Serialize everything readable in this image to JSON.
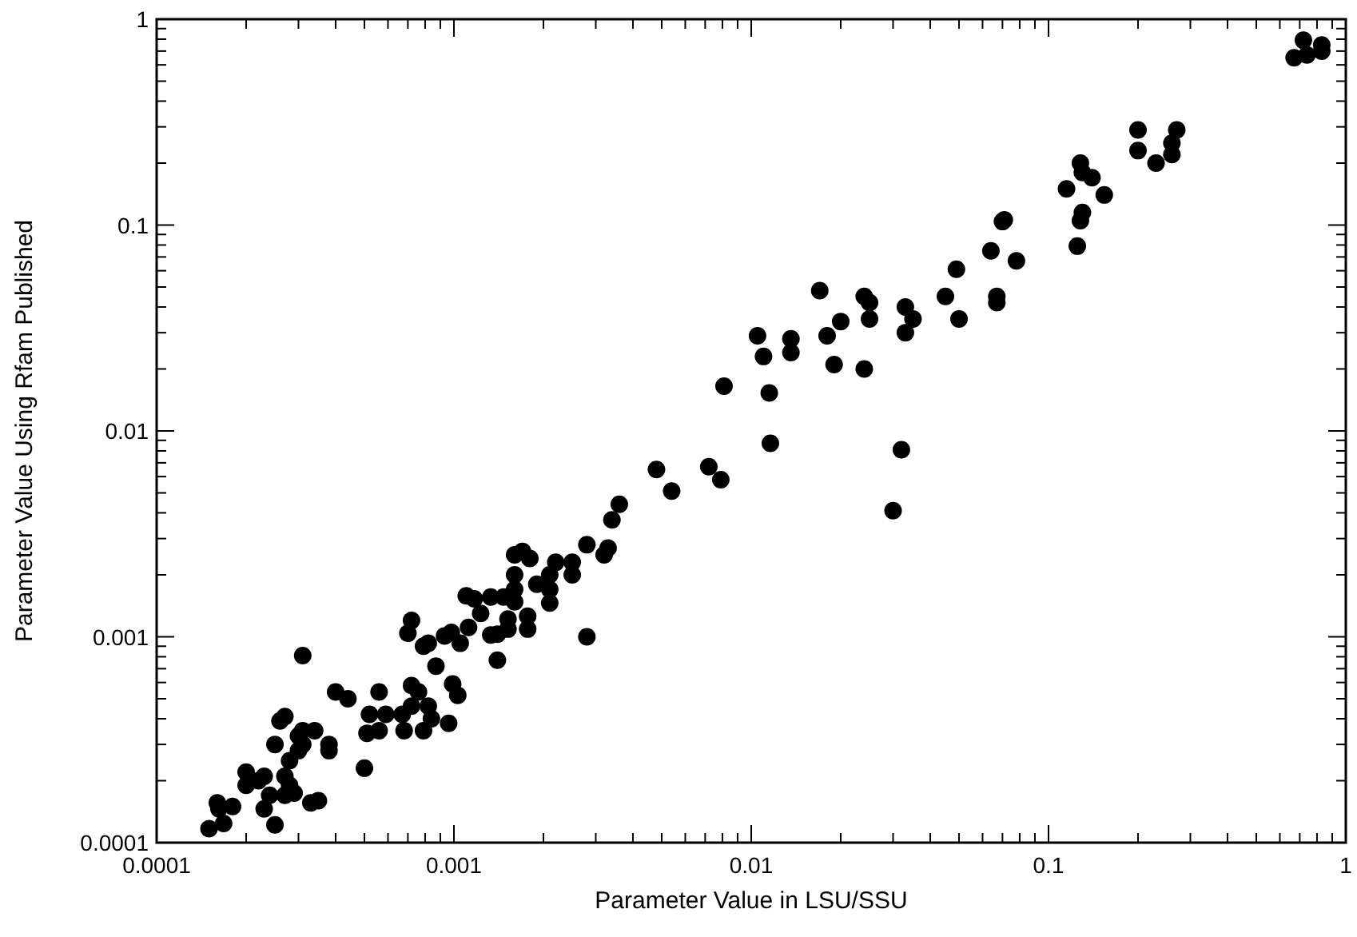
{
  "chart_data": {
    "type": "scatter",
    "xlabel": "Parameter Value in LSU/SSU",
    "ylabel": "Parameter Value Using Rfam Published",
    "log": "xy",
    "marker": "circle",
    "grid": false,
    "xlim": [
      0.0001,
      1
    ],
    "ylim": [
      0.0001,
      1
    ],
    "xticks": [
      0.0001,
      {
        "value": 0.0002,
        "label": null
      },
      {
        "value": 0.0003,
        "label": null
      },
      {
        "value": 0.0004,
        "label": null
      },
      {
        "value": 0.0005,
        "label": null
      },
      {
        "value": 0.0006,
        "label": null
      },
      {
        "value": 0.0007,
        "label": null
      },
      {
        "value": 0.0008,
        "label": null
      },
      {
        "value": 0.0009,
        "label": null
      },
      0.001,
      {
        "value": 0.002,
        "label": null
      },
      {
        "value": 0.003,
        "label": null
      },
      {
        "value": 0.004,
        "label": null
      },
      {
        "value": 0.005,
        "label": null
      },
      {
        "value": 0.006,
        "label": null
      },
      {
        "value": 0.007,
        "label": null
      },
      {
        "value": 0.008,
        "label": null
      },
      {
        "value": 0.009,
        "label": null
      },
      0.01,
      {
        "value": 0.02,
        "label": null
      },
      {
        "value": 0.03,
        "label": null
      },
      {
        "value": 0.04,
        "label": null
      },
      {
        "value": 0.05,
        "label": null
      },
      {
        "value": 0.06,
        "label": null
      },
      {
        "value": 0.07,
        "label": null
      },
      {
        "value": 0.08,
        "label": null
      },
      {
        "value": 0.09,
        "label": null
      },
      0.1,
      {
        "value": 0.2,
        "label": null
      },
      {
        "value": 0.3,
        "label": null
      },
      {
        "value": 0.4,
        "label": null
      },
      {
        "value": 0.5,
        "label": null
      },
      {
        "value": 0.6,
        "label": null
      },
      {
        "value": 0.7,
        "label": null
      },
      {
        "value": 0.8,
        "label": null
      },
      {
        "value": 0.9,
        "label": null
      },
      1
    ],
    "yticks": [
      0.0001,
      {
        "value": 0.0002,
        "label": null
      },
      {
        "value": 0.0003,
        "label": null
      },
      {
        "value": 0.0004,
        "label": null
      },
      {
        "value": 0.0005,
        "label": null
      },
      {
        "value": 0.0006,
        "label": null
      },
      {
        "value": 0.0007,
        "label": null
      },
      {
        "value": 0.0008,
        "label": null
      },
      {
        "value": 0.0009,
        "label": null
      },
      0.001,
      {
        "value": 0.002,
        "label": null
      },
      {
        "value": 0.003,
        "label": null
      },
      {
        "value": 0.004,
        "label": null
      },
      {
        "value": 0.005,
        "label": null
      },
      {
        "value": 0.006,
        "label": null
      },
      {
        "value": 0.007,
        "label": null
      },
      {
        "value": 0.008,
        "label": null
      },
      {
        "value": 0.009,
        "label": null
      },
      0.01,
      {
        "value": 0.02,
        "label": null
      },
      {
        "value": 0.03,
        "label": null
      },
      {
        "value": 0.04,
        "label": null
      },
      {
        "value": 0.05,
        "label": null
      },
      {
        "value": 0.06,
        "label": null
      },
      {
        "value": 0.07,
        "label": null
      },
      {
        "value": 0.08,
        "label": null
      },
      {
        "value": 0.09,
        "label": null
      },
      0.1,
      {
        "value": 0.2,
        "label": null
      },
      {
        "value": 0.3,
        "label": null
      },
      {
        "value": 0.4,
        "label": null
      },
      {
        "value": 0.5,
        "label": null
      },
      {
        "value": 0.6,
        "label": null
      },
      {
        "value": 0.7,
        "label": null
      },
      {
        "value": 0.8,
        "label": null
      },
      {
        "value": 0.9,
        "label": null
      },
      1
    ],
    "series": [
      {
        "color": "#000000",
        "x": [
          0.67,
          0.72,
          0.74,
          0.83,
          0.83,
          0.2,
          0.23,
          0.2,
          0.26,
          0.26,
          0.27,
          0.128,
          0.13,
          0.14,
          0.115,
          0.154,
          0.13,
          0.128,
          0.125,
          0.07,
          0.071,
          0.064,
          0.078,
          0.049,
          0.045,
          0.067,
          0.067,
          0.033,
          0.035,
          0.05,
          0.017,
          0.024,
          0.025,
          0.02,
          0.025,
          0.033,
          0.0105,
          0.0136,
          0.018,
          0.011,
          0.0136,
          0.019,
          0.024,
          0.0081,
          0.0115,
          0.0116,
          0.032,
          0.03,
          0.0048,
          0.0054,
          0.0072,
          0.0079,
          0.0036,
          0.0034,
          0.0028,
          0.0032,
          0.0033,
          0.0016,
          0.0017,
          0.0018,
          0.0022,
          0.0025,
          0.0025,
          0.0016,
          0.0019,
          0.0021,
          0.0021,
          0.0021,
          0.0016,
          0.0016,
          0.00133,
          0.00147,
          0.0011,
          0.00117,
          0.00123,
          0.00177,
          0.00152,
          0.00177,
          0.00152,
          0.00133,
          0.0014,
          0.00112,
          0.00098,
          0.00105,
          0.00093,
          0.00082,
          0.00079,
          0.00087,
          0.00072,
          0.0007,
          0.0014,
          0.0028,
          0.00031,
          0.0004,
          0.00044,
          0.00056,
          0.00027,
          0.00026,
          0.00031,
          0.0003,
          0.00031,
          0.00025,
          0.00038,
          0.00038,
          0.00052,
          0.00059,
          0.00067,
          0.00051,
          0.00056,
          0.00068,
          0.00072,
          0.00076,
          0.00072,
          0.00082,
          0.00084,
          0.00079,
          0.00096,
          0.00099,
          0.00103,
          0.0005,
          0.0002,
          0.00022,
          0.0002,
          0.00023,
          0.00027,
          0.00028,
          0.00024,
          0.00027,
          0.00023,
          0.00025,
          0.00033,
          0.00035,
          0.00029,
          0.00016,
          0.000162,
          0.00018,
          0.00015,
          0.000168,
          0.00028,
          0.0003,
          0.00034
        ],
        "values": [
          0.65,
          0.79,
          0.67,
          0.75,
          0.7,
          0.29,
          0.2,
          0.23,
          0.25,
          0.22,
          0.29,
          0.2,
          0.18,
          0.17,
          0.15,
          0.14,
          0.115,
          0.105,
          0.079,
          0.104,
          0.106,
          0.075,
          0.067,
          0.061,
          0.045,
          0.045,
          0.042,
          0.04,
          0.035,
          0.035,
          0.048,
          0.045,
          0.042,
          0.034,
          0.035,
          0.03,
          0.029,
          0.028,
          0.029,
          0.023,
          0.024,
          0.021,
          0.02,
          0.0165,
          0.0153,
          0.0087,
          0.0081,
          0.0041,
          0.0065,
          0.0051,
          0.0067,
          0.0058,
          0.0044,
          0.0037,
          0.0028,
          0.0025,
          0.0027,
          0.0025,
          0.0026,
          0.0024,
          0.0023,
          0.0023,
          0.002,
          0.002,
          0.0018,
          0.002,
          0.0017,
          0.00146,
          0.0017,
          0.00148,
          0.00156,
          0.00156,
          0.00158,
          0.00153,
          0.0013,
          0.00126,
          0.00122,
          0.00109,
          0.00109,
          0.00102,
          0.00103,
          0.00111,
          0.00105,
          0.00093,
          0.00101,
          0.00093,
          0.0009,
          0.00072,
          0.0012,
          0.00104,
          0.00077,
          0.001,
          0.00081,
          0.00054,
          0.0005,
          0.00054,
          0.00041,
          0.00039,
          0.00035,
          0.00033,
          0.0003,
          0.0003,
          0.0003,
          0.00028,
          0.00042,
          0.00042,
          0.00042,
          0.00034,
          0.00035,
          0.00035,
          0.00058,
          0.00054,
          0.00046,
          0.00046,
          0.0004,
          0.00035,
          0.00038,
          0.00059,
          0.00052,
          0.00023,
          0.00022,
          0.0002,
          0.00019,
          0.00021,
          0.00021,
          0.00019,
          0.00017,
          0.00017,
          0.000146,
          0.000122,
          0.000156,
          0.00016,
          0.000174,
          0.000156,
          0.000146,
          0.00015,
          0.000117,
          0.000124,
          0.00025,
          0.00028,
          0.00035
        ]
      }
    ]
  }
}
